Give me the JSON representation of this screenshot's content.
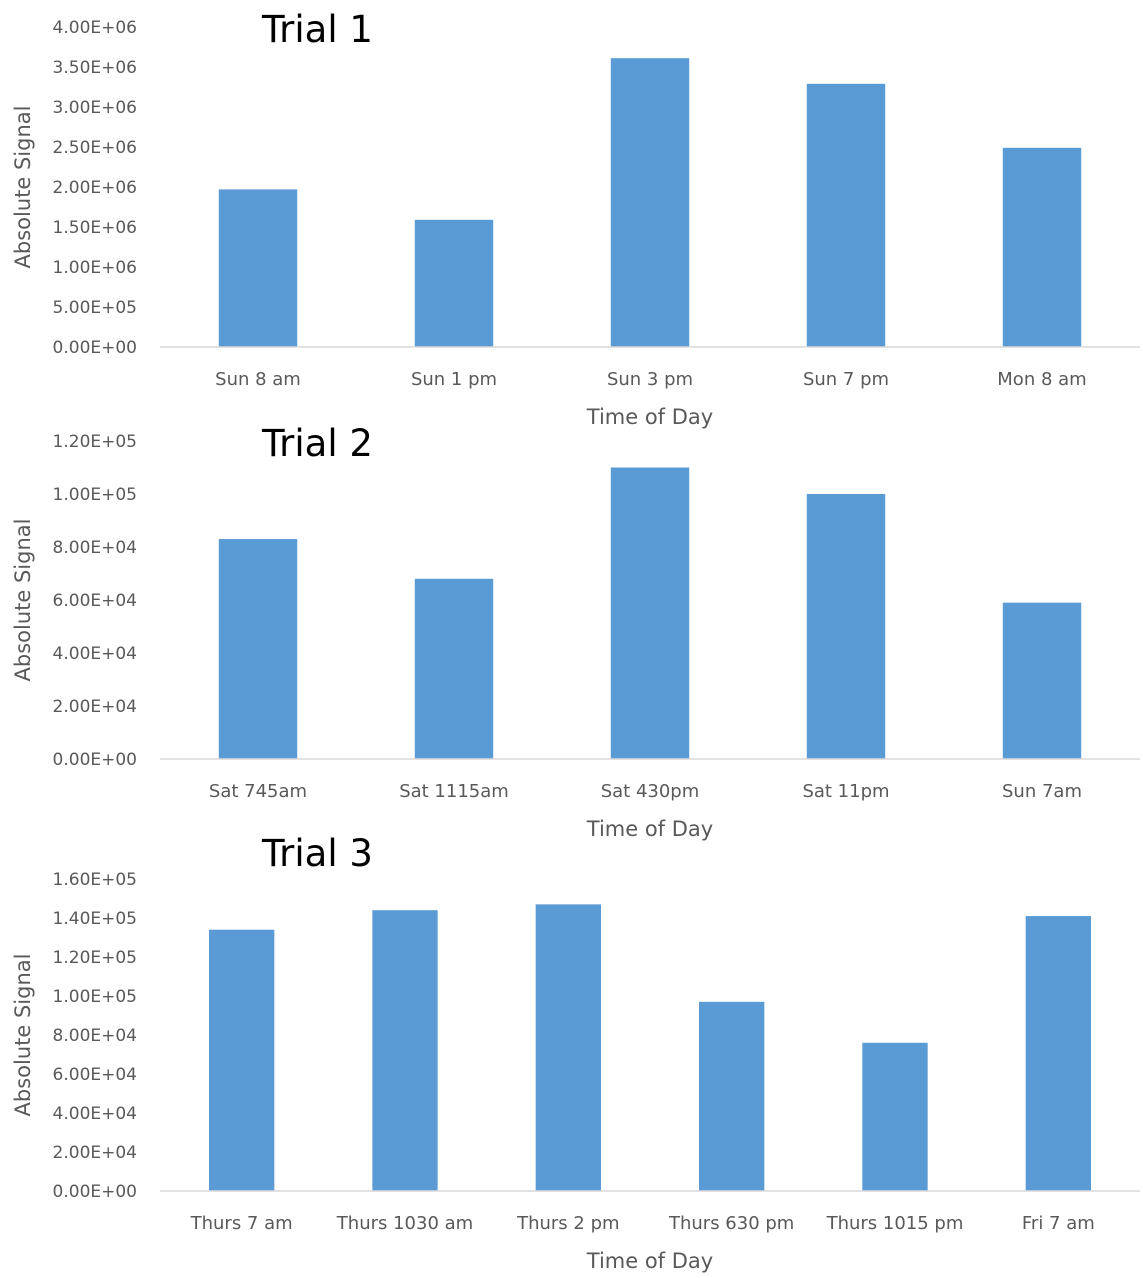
{
  "chart_data": [
    {
      "type": "bar",
      "title": "Trial 1",
      "xlabel": "Time of Day",
      "ylabel": "Absolute Signal",
      "categories": [
        "Sun 8 am",
        "Sun 1 pm",
        "Sun 3 pm",
        "Sun 7 pm",
        "Mon 8 am"
      ],
      "values": [
        1970000,
        1590000,
        3610000,
        3290000,
        2490000
      ],
      "ylim": [
        0,
        4000000
      ],
      "yticks": [
        0,
        500000,
        1000000,
        1500000,
        2000000,
        2500000,
        3000000,
        3500000,
        4000000
      ],
      "ytick_labels": [
        "0.00E+00",
        "5.00E+05",
        "1.00E+06",
        "1.50E+06",
        "2.00E+06",
        "2.50E+06",
        "3.00E+06",
        "3.50E+06",
        "4.00E+06"
      ],
      "grid": false,
      "bar_color": "#5b9bd5"
    },
    {
      "type": "bar",
      "title": "Trial 2",
      "xlabel": "Time of Day",
      "ylabel": "Absolute Signal",
      "categories": [
        "Sat 745am",
        "Sat 1115am",
        "Sat 430pm",
        "Sat 11pm",
        "Sun 7am"
      ],
      "values": [
        83000,
        68000,
        110000,
        100000,
        59000
      ],
      "ylim": [
        0,
        120000
      ],
      "yticks": [
        0,
        20000,
        40000,
        60000,
        80000,
        100000,
        120000
      ],
      "ytick_labels": [
        "0.00E+00",
        "2.00E+04",
        "4.00E+04",
        "6.00E+04",
        "8.00E+04",
        "1.00E+05",
        "1.20E+05"
      ],
      "grid": false,
      "bar_color": "#5b9bd5"
    },
    {
      "type": "bar",
      "title": "Trial 3",
      "xlabel": "Time of Day",
      "ylabel": "Absolute Signal",
      "categories": [
        "Thurs 7 am",
        "Thurs 1030 am",
        "Thurs 2 pm",
        "Thurs 630 pm",
        "Thurs 1015 pm",
        "Fri 7 am"
      ],
      "values": [
        134000,
        144000,
        147000,
        97000,
        76000,
        141000
      ],
      "ylim": [
        0,
        160000
      ],
      "yticks": [
        0,
        20000,
        40000,
        60000,
        80000,
        100000,
        120000,
        140000,
        160000
      ],
      "ytick_labels": [
        "0.00E+00",
        "2.00E+04",
        "4.00E+04",
        "6.00E+04",
        "8.00E+04",
        "1.00E+05",
        "1.20E+05",
        "1.40E+05",
        "1.60E+05"
      ],
      "grid": false,
      "bar_color": "#5b9bd5"
    }
  ]
}
